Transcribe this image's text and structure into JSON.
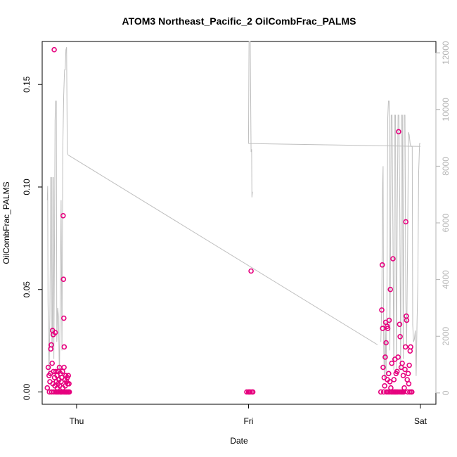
{
  "chart_data": {
    "type": "scatter",
    "title": "ATOM3 Northeast_Pacific_2 OilCombFrac_PALMS",
    "xlabel": "Date",
    "ylabel": "OilCombFrac_PALMS",
    "x_ticks": [
      "Thu",
      "Fri",
      "Sat"
    ],
    "x_range_days": [
      -0.2,
      2.09
    ],
    "y_ticks": [
      "0.00",
      "0.05",
      "0.10",
      "0.15"
    ],
    "ylim": [
      -0.006,
      0.171
    ],
    "y2_ticks": [
      "0",
      "2000",
      "4000",
      "6000",
      "8000",
      "10000",
      "12000"
    ],
    "y2lim": [
      -400,
      12400
    ],
    "grid": false,
    "series": [
      {
        "kind": "points",
        "color": "#e6007e",
        "points": [
          [
            -0.17,
            0.002
          ],
          [
            -0.165,
            0.012
          ],
          [
            -0.16,
            0.008
          ],
          [
            -0.158,
            0.0
          ],
          [
            -0.155,
            0.005
          ],
          [
            -0.152,
            0.009
          ],
          [
            -0.15,
            0.021
          ],
          [
            -0.147,
            0.023
          ],
          [
            -0.145,
            0.0
          ],
          [
            -0.142,
            0.014
          ],
          [
            -0.14,
            0.03
          ],
          [
            -0.138,
            0.004
          ],
          [
            -0.136,
            0.028
          ],
          [
            -0.134,
            0.01
          ],
          [
            -0.132,
            0.0
          ],
          [
            -0.13,
            0.167
          ],
          [
            -0.128,
            0.007
          ],
          [
            -0.126,
            0.003
          ],
          [
            -0.124,
            0.029
          ],
          [
            -0.122,
            0.0
          ],
          [
            -0.12,
            0.01
          ],
          [
            -0.118,
            0.005
          ],
          [
            -0.116,
            0.0
          ],
          [
            -0.114,
            0.008
          ],
          [
            -0.112,
            0.002
          ],
          [
            -0.11,
            0.0
          ],
          [
            -0.108,
            0.004
          ],
          [
            -0.106,
            0.01
          ],
          [
            -0.104,
            0.0
          ],
          [
            -0.102,
            0.006
          ],
          [
            -0.1,
            0.012
          ],
          [
            -0.098,
            0.003
          ],
          [
            -0.096,
            0.0
          ],
          [
            -0.094,
            0.009
          ],
          [
            -0.092,
            0.0
          ],
          [
            -0.09,
            0.005
          ],
          [
            -0.088,
            0.0
          ],
          [
            -0.086,
            0.007
          ],
          [
            -0.084,
            0.0
          ],
          [
            -0.082,
            0.01
          ],
          [
            -0.08,
            0.002
          ],
          [
            -0.078,
            0.086
          ],
          [
            -0.076,
            0.055
          ],
          [
            -0.075,
            0.0
          ],
          [
            -0.074,
            0.036
          ],
          [
            -0.073,
            0.012
          ],
          [
            -0.072,
            0.022
          ],
          [
            -0.07,
            0.0
          ],
          [
            -0.068,
            0.006
          ],
          [
            -0.066,
            0.003
          ],
          [
            -0.064,
            0.0
          ],
          [
            -0.062,
            0.008
          ],
          [
            -0.06,
            0.0
          ],
          [
            -0.058,
            0.005
          ],
          [
            -0.056,
            0.0
          ],
          [
            -0.054,
            0.007
          ],
          [
            -0.052,
            0.004
          ],
          [
            -0.05,
            0.0
          ],
          [
            -0.048,
            0.008
          ],
          [
            -0.046,
            0.0
          ],
          [
            -0.044,
            0.004
          ],
          [
            -0.042,
            0.0
          ],
          [
            0.99,
            0.0
          ],
          [
            1.0,
            0.0
          ],
          [
            1.005,
            0.0
          ],
          [
            1.01,
            0.0
          ],
          [
            1.015,
            0.059
          ],
          [
            1.02,
            0.0
          ],
          [
            1.025,
            0.0
          ],
          [
            1.77,
            0.0
          ],
          [
            1.775,
            0.04
          ],
          [
            1.778,
            0.062
          ],
          [
            1.78,
            0.031
          ],
          [
            1.783,
            0.012
          ],
          [
            1.786,
            0.0
          ],
          [
            1.789,
            0.007
          ],
          [
            1.792,
            0.003
          ],
          [
            1.795,
            0.017
          ],
          [
            1.798,
            0.034
          ],
          [
            1.8,
            0.024
          ],
          [
            1.803,
            0.0
          ],
          [
            1.806,
            0.032
          ],
          [
            1.808,
            0.006
          ],
          [
            1.81,
            0.031
          ],
          [
            1.812,
            0.0
          ],
          [
            1.815,
            0.009
          ],
          [
            1.818,
            0.035
          ],
          [
            1.82,
            0.0
          ],
          [
            1.822,
            0.005
          ],
          [
            1.825,
            0.05
          ],
          [
            1.828,
            0.002
          ],
          [
            1.83,
            0.0
          ],
          [
            1.833,
            0.014
          ],
          [
            1.836,
            0.0
          ],
          [
            1.84,
            0.065
          ],
          [
            1.843,
            0.0
          ],
          [
            1.846,
            0.006
          ],
          [
            1.85,
            0.0
          ],
          [
            1.852,
            0.016
          ],
          [
            1.855,
            0.0
          ],
          [
            1.858,
            0.009
          ],
          [
            1.861,
            0.0
          ],
          [
            1.864,
            0.01
          ],
          [
            1.867,
            0.0
          ],
          [
            1.87,
            0.017
          ],
          [
            1.873,
            0.127
          ],
          [
            1.876,
            0.0
          ],
          [
            1.879,
            0.033
          ],
          [
            1.882,
            0.027
          ],
          [
            1.885,
            0.0
          ],
          [
            1.888,
            0.012
          ],
          [
            1.891,
            0.0
          ],
          [
            1.894,
            0.014
          ],
          [
            1.897,
            0.0
          ],
          [
            1.9,
            0.008
          ],
          [
            1.903,
            0.0
          ],
          [
            1.906,
            0.002
          ],
          [
            1.91,
            0.011
          ],
          [
            1.913,
            0.022
          ],
          [
            1.915,
            0.083
          ],
          [
            1.918,
            0.037
          ],
          [
            1.92,
            0.035
          ],
          [
            1.923,
            0.006
          ],
          [
            1.926,
            0.0
          ],
          [
            1.929,
            0.009
          ],
          [
            1.932,
            0.004
          ],
          [
            1.935,
            0.013
          ],
          [
            1.938,
            0.0
          ],
          [
            1.94,
            0.02
          ],
          [
            1.943,
            0.022
          ],
          [
            1.946,
            0.0
          ],
          [
            1.95,
            0.0
          ]
        ]
      },
      {
        "kind": "line",
        "color": "#bfbfbf",
        "axis": "right",
        "points": [
          [
            -0.17,
            6800
          ],
          [
            -0.168,
            7300
          ],
          [
            -0.166,
            3200
          ],
          [
            -0.163,
            1900
          ],
          [
            -0.16,
            600
          ],
          [
            -0.155,
            2800
          ],
          [
            -0.15,
            7600
          ],
          [
            -0.146,
            7600
          ],
          [
            -0.143,
            1600
          ],
          [
            -0.14,
            2200
          ],
          [
            -0.138,
            7600
          ],
          [
            -0.135,
            7600
          ],
          [
            -0.132,
            1200
          ],
          [
            -0.128,
            5600
          ],
          [
            -0.125,
            9600
          ],
          [
            -0.122,
            10300
          ],
          [
            -0.118,
            10300
          ],
          [
            -0.115,
            1800
          ],
          [
            -0.11,
            3000
          ],
          [
            -0.105,
            2700
          ],
          [
            -0.1,
            500
          ],
          [
            -0.095,
            3500
          ],
          [
            -0.09,
            6800
          ],
          [
            -0.085,
            1500
          ],
          [
            -0.08,
            8600
          ],
          [
            -0.075,
            10500
          ],
          [
            -0.07,
            11400
          ],
          [
            -0.066,
            11400
          ],
          [
            -0.062,
            12100
          ],
          [
            -0.058,
            12200
          ],
          [
            -0.054,
            8500
          ],
          [
            -0.05,
            8400
          ],
          [
            1.0,
            8800
          ],
          [
            1.003,
            12400
          ],
          [
            1.005,
            12400
          ],
          [
            1.01,
            12400
          ],
          [
            1.015,
            8500
          ],
          [
            1.018,
            8600
          ],
          [
            1.02,
            6900
          ],
          [
            1.023,
            7100
          ],
          [
            1.77,
            1800
          ],
          [
            1.775,
            3200
          ],
          [
            1.78,
            7400
          ],
          [
            1.783,
            8000
          ],
          [
            1.786,
            1700
          ],
          [
            1.79,
            500
          ],
          [
            1.795,
            2500
          ],
          [
            1.8,
            600
          ],
          [
            1.805,
            3200
          ],
          [
            1.81,
            9700
          ],
          [
            1.814,
            10300
          ],
          [
            1.818,
            10300
          ],
          [
            1.822,
            1500
          ],
          [
            1.826,
            4800
          ],
          [
            1.83,
            9800
          ],
          [
            1.835,
            9800
          ],
          [
            1.84,
            5600
          ],
          [
            1.845,
            800
          ],
          [
            1.85,
            9800
          ],
          [
            1.855,
            9800
          ],
          [
            1.86,
            700
          ],
          [
            1.865,
            6400
          ],
          [
            1.87,
            9800
          ],
          [
            1.875,
            9800
          ],
          [
            1.88,
            6500
          ],
          [
            1.885,
            800
          ],
          [
            1.89,
            9800
          ],
          [
            1.895,
            9800
          ],
          [
            1.9,
            1200
          ],
          [
            1.905,
            9800
          ],
          [
            1.91,
            9800
          ],
          [
            1.915,
            3200
          ],
          [
            1.92,
            1700
          ],
          [
            1.925,
            5000
          ],
          [
            1.93,
            9200
          ],
          [
            1.935,
            9100
          ],
          [
            1.94,
            8800
          ],
          [
            1.945,
            8700
          ],
          [
            1.948,
            8700
          ],
          [
            1.95,
            8700
          ],
          [
            1.952,
            8700
          ],
          [
            1.955,
            2400
          ],
          [
            1.96,
            1800
          ],
          [
            1.965,
            1900
          ],
          [
            1.97,
            2200
          ],
          [
            1.975,
            600
          ],
          [
            1.98,
            2400
          ],
          [
            1.985,
            3900
          ],
          [
            1.99,
            7800
          ],
          [
            1.995,
            8800
          ],
          [
            2.0,
            8800
          ]
        ]
      }
    ],
    "connectors": [
      {
        "color": "#bfbfbf",
        "axis": "right",
        "points": [
          [
            -0.05,
            8400
          ],
          [
            1.75,
            1700
          ]
        ]
      },
      {
        "color": "#bfbfbf",
        "axis": "right",
        "points": [
          [
            1.0,
            8800
          ],
          [
            2.0,
            8700
          ]
        ]
      }
    ]
  }
}
